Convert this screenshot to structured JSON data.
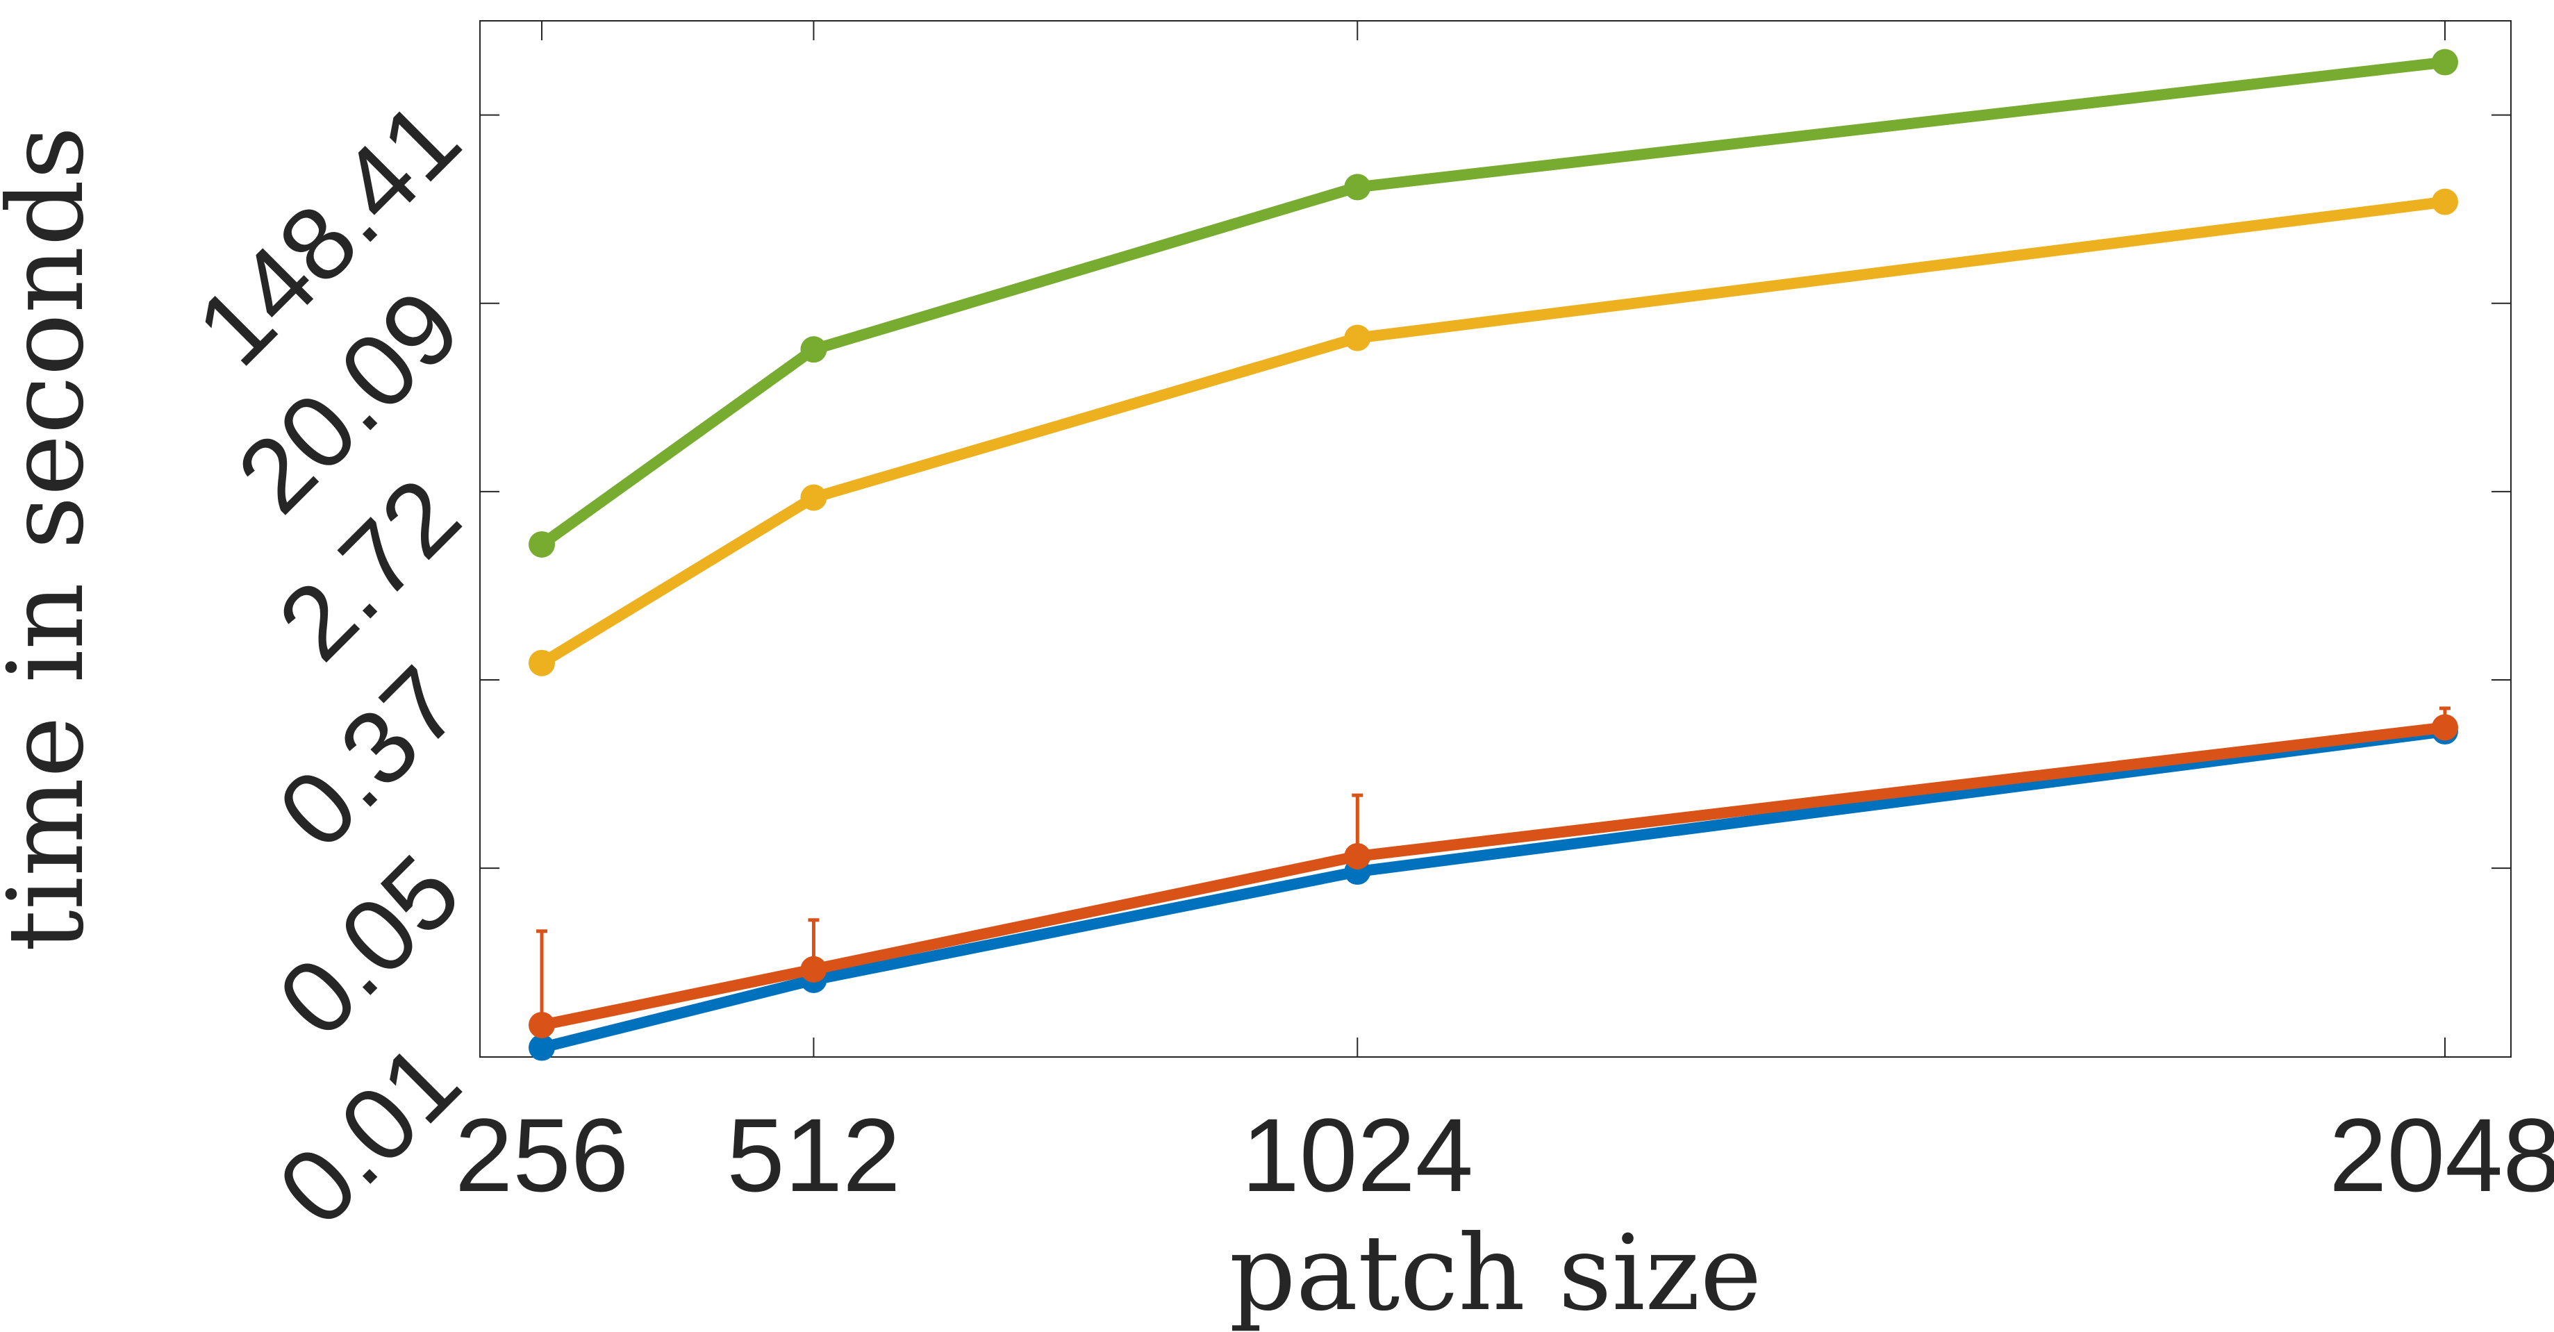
{
  "chart_data": {
    "type": "line",
    "xlabel": "patch size",
    "ylabel": "time in seconds",
    "x": [
      256,
      512,
      1024,
      2048
    ],
    "x_tick_labels": [
      "256",
      "512",
      "1024",
      "2048"
    ],
    "y_scale": "log",
    "y_tick_labels": [
      "0.01",
      "0.05",
      "0.37",
      "2.72",
      "20.09",
      "148.41"
    ],
    "y_tick_values": [
      0.0067,
      0.0498,
      0.3679,
      2.7183,
      20.0855,
      148.4132
    ],
    "xlim": [
      256,
      2048
    ],
    "ylim": [
      0.0067,
      403.43
    ],
    "grid": false,
    "series": [
      {
        "color": "#77AC30",
        "values": [
          1.55,
          12.3,
          69.0,
          260.0
        ]
      },
      {
        "color": "#EDB120",
        "values": [
          0.44,
          2.55,
          13.9,
          59.0
        ]
      },
      {
        "color": "#0072BD",
        "values": [
          0.0074,
          0.0152,
          0.048,
          0.213
        ]
      },
      {
        "color": "#D95319",
        "values": [
          0.0094,
          0.017,
          0.0565,
          0.222
        ],
        "error_upper": [
          0.0255,
          0.0287,
          0.108,
          0.272
        ]
      }
    ]
  }
}
